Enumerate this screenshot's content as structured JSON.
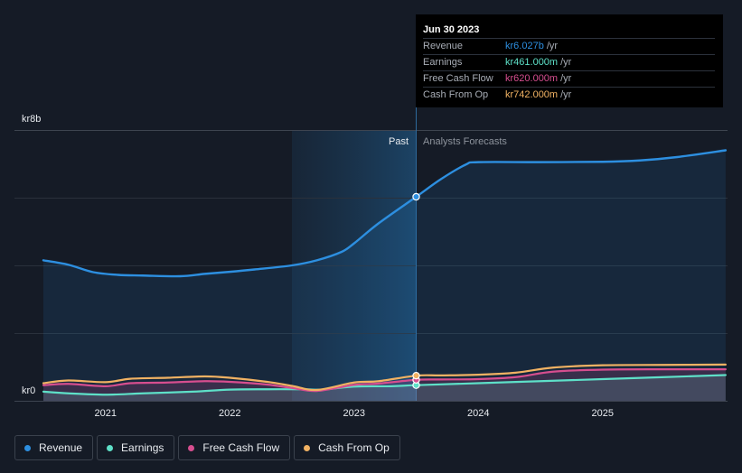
{
  "chart_data": {
    "type": "line",
    "title": "",
    "y_unit_prefix": "kr",
    "ylim": [
      0,
      8000
    ],
    "y_ticks": [
      {
        "value": 8000,
        "label": "kr8b"
      },
      {
        "value": 0,
        "label": "kr0"
      }
    ],
    "x_range": [
      2020.5,
      2025.99
    ],
    "x_ticks": [
      {
        "value": 2021,
        "label": "2021"
      },
      {
        "value": 2022,
        "label": "2022"
      },
      {
        "value": 2023,
        "label": "2023"
      },
      {
        "value": 2024,
        "label": "2024"
      },
      {
        "value": 2025,
        "label": "2025"
      }
    ],
    "past_region_start": 2022.5,
    "divider": 2023.5,
    "past_label": "Past",
    "forecast_label": "Analysts Forecasts",
    "series": [
      {
        "name": "Revenue",
        "color": "#2d8fe0",
        "area": true,
        "points": [
          [
            2020.5,
            4150
          ],
          [
            2020.7,
            4020
          ],
          [
            2020.9,
            3800
          ],
          [
            2021.1,
            3720
          ],
          [
            2021.3,
            3700
          ],
          [
            2021.6,
            3680
          ],
          [
            2021.8,
            3750
          ],
          [
            2022.0,
            3810
          ],
          [
            2022.2,
            3880
          ],
          [
            2022.5,
            4000
          ],
          [
            2022.7,
            4150
          ],
          [
            2022.9,
            4400
          ],
          [
            2023.0,
            4650
          ],
          [
            2023.2,
            5250
          ],
          [
            2023.5,
            6027
          ],
          [
            2023.7,
            6550
          ],
          [
            2023.9,
            6980
          ],
          [
            2024.0,
            7050
          ],
          [
            2024.5,
            7050
          ],
          [
            2025.0,
            7060
          ],
          [
            2025.3,
            7100
          ],
          [
            2025.6,
            7200
          ],
          [
            2025.99,
            7400
          ]
        ]
      },
      {
        "name": "Earnings",
        "color": "#5ee0c8",
        "area": true,
        "points": [
          [
            2020.5,
            270
          ],
          [
            2020.7,
            220
          ],
          [
            2021.0,
            180
          ],
          [
            2021.3,
            220
          ],
          [
            2021.7,
            270
          ],
          [
            2022.0,
            330
          ],
          [
            2022.3,
            340
          ],
          [
            2022.6,
            340
          ],
          [
            2022.75,
            330
          ],
          [
            2023.0,
            420
          ],
          [
            2023.3,
            430
          ],
          [
            2023.5,
            461
          ],
          [
            2024.0,
            520
          ],
          [
            2024.5,
            580
          ],
          [
            2025.0,
            640
          ],
          [
            2025.5,
            700
          ],
          [
            2025.99,
            760
          ]
        ]
      },
      {
        "name": "Free Cash Flow",
        "color": "#d64e8f",
        "area": true,
        "points": [
          [
            2020.5,
            460
          ],
          [
            2020.7,
            500
          ],
          [
            2021.0,
            430
          ],
          [
            2021.2,
            520
          ],
          [
            2021.5,
            540
          ],
          [
            2021.8,
            580
          ],
          [
            2022.0,
            560
          ],
          [
            2022.3,
            480
          ],
          [
            2022.5,
            380
          ],
          [
            2022.7,
            290
          ],
          [
            2023.0,
            470
          ],
          [
            2023.2,
            510
          ],
          [
            2023.5,
            620
          ],
          [
            2023.7,
            630
          ],
          [
            2024.0,
            640
          ],
          [
            2024.3,
            700
          ],
          [
            2024.6,
            860
          ],
          [
            2025.0,
            920
          ],
          [
            2025.5,
            930
          ],
          [
            2025.99,
            930
          ]
        ]
      },
      {
        "name": "Cash From Op",
        "color": "#f1b263",
        "area": false,
        "points": [
          [
            2020.5,
            520
          ],
          [
            2020.7,
            600
          ],
          [
            2021.0,
            550
          ],
          [
            2021.2,
            650
          ],
          [
            2021.5,
            680
          ],
          [
            2021.8,
            720
          ],
          [
            2022.0,
            680
          ],
          [
            2022.3,
            560
          ],
          [
            2022.5,
            440
          ],
          [
            2022.7,
            320
          ],
          [
            2023.0,
            540
          ],
          [
            2023.2,
            580
          ],
          [
            2023.5,
            742
          ],
          [
            2023.7,
            750
          ],
          [
            2024.0,
            770
          ],
          [
            2024.3,
            830
          ],
          [
            2024.6,
            980
          ],
          [
            2025.0,
            1050
          ],
          [
            2025.5,
            1060
          ],
          [
            2025.99,
            1070
          ]
        ]
      }
    ]
  },
  "tooltip": {
    "date": "Jun 30 2023",
    "rows": [
      {
        "name": "Revenue",
        "value": "kr6.027b",
        "unit": "/yr",
        "color": "#2d8fe0"
      },
      {
        "name": "Earnings",
        "value": "kr461.000m",
        "unit": "/yr",
        "color": "#5ee0c8"
      },
      {
        "name": "Free Cash Flow",
        "value": "kr620.000m",
        "unit": "/yr",
        "color": "#d64e8f"
      },
      {
        "name": "Cash From Op",
        "value": "kr742.000m",
        "unit": "/yr",
        "color": "#f1b263"
      }
    ]
  },
  "legend": [
    {
      "label": "Revenue",
      "color": "#2d8fe0"
    },
    {
      "label": "Earnings",
      "color": "#5ee0c8"
    },
    {
      "label": "Free Cash Flow",
      "color": "#d64e8f"
    },
    {
      "label": "Cash From Op",
      "color": "#f1b263"
    }
  ]
}
